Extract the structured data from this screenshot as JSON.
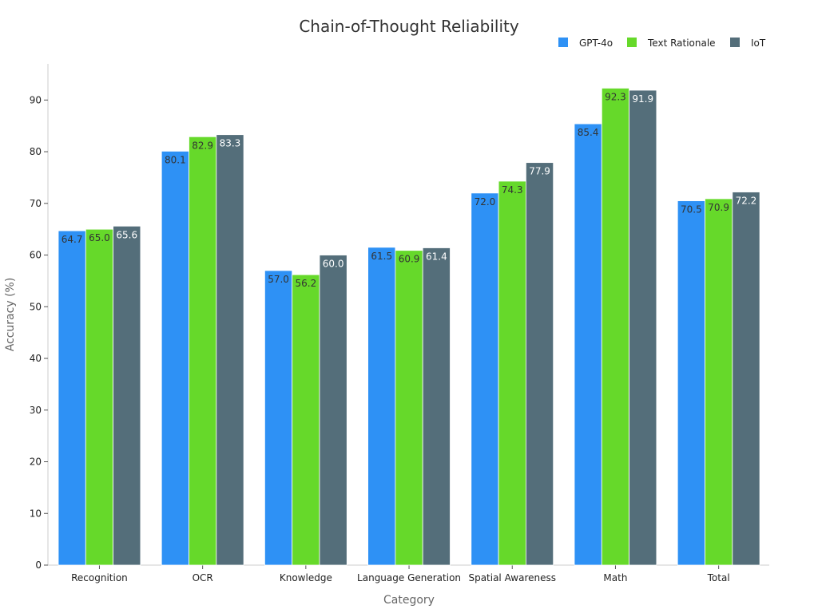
{
  "chart_data": {
    "type": "bar",
    "title": "Chain-of-Thought Reliability",
    "xlabel": "Category",
    "ylabel": "Accuracy (%)",
    "ylim": [
      0,
      97
    ],
    "yticks": [
      0,
      10,
      20,
      30,
      40,
      50,
      60,
      70,
      80,
      90
    ],
    "grid": false,
    "legend_position": "top-right",
    "categories": [
      "Recognition",
      "OCR",
      "Knowledge",
      "Language Generation",
      "Spatial Awareness",
      "Math",
      "Total"
    ],
    "series": [
      {
        "name": "GPT-4o",
        "color": "#2e91f5",
        "label_color": "#333333",
        "values": [
          64.7,
          80.1,
          57.0,
          61.5,
          72.0,
          85.4,
          70.5
        ]
      },
      {
        "name": "Text Rationale",
        "color": "#66d92a",
        "label_color": "#333333",
        "values": [
          65.0,
          82.9,
          56.2,
          60.9,
          74.3,
          92.3,
          70.9
        ]
      },
      {
        "name": "IoT",
        "color": "#546e7a",
        "label_color": "#ffffff",
        "values": [
          65.6,
          83.3,
          60.0,
          61.4,
          77.9,
          91.9,
          72.2
        ]
      }
    ]
  }
}
